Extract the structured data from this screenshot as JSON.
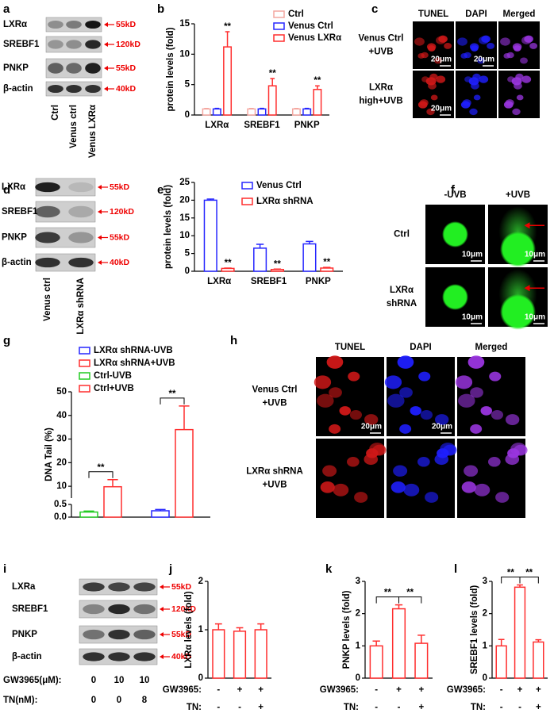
{
  "panel_labels": [
    "a",
    "b",
    "c",
    "d",
    "e",
    "f",
    "g",
    "h",
    "i",
    "j",
    "k",
    "l"
  ],
  "blots": [
    {
      "rows": [
        "LXRα",
        "SREBF1",
        "PNKP",
        "β-actin"
      ],
      "sizes": [
        "55kD",
        "120kD",
        "55kD",
        "40kD"
      ],
      "lanes": [
        "Ctrl",
        "Venus ctrl",
        "Venus LXRα"
      ]
    },
    {
      "rows": [
        "LXRα",
        "SREBF1",
        "PNKP",
        "β-actin"
      ],
      "sizes": [
        "55kD",
        "120kD",
        "55kD",
        "40kD"
      ],
      "lanes": [
        "Venus ctrl",
        "LXRα shRNA"
      ]
    },
    {
      "rows": [
        "LXRa",
        "SREBF1",
        "PNKP",
        "β-actin"
      ],
      "sizes": [
        "55kD",
        "120kD",
        "55kD",
        "40kD"
      ],
      "treatments": [
        {
          "label": "GW3965(μM):",
          "values": [
            0,
            10,
            10
          ]
        },
        {
          "label": "TN(nM):",
          "values": [
            0,
            0,
            8
          ]
        }
      ]
    }
  ],
  "micrographs": [
    {
      "columns": [
        "TUNEL",
        "DAPI",
        "Merged"
      ],
      "rows": [
        [
          "Venus Ctrl",
          "+UVB"
        ],
        [
          "LXRα",
          "high+UVB"
        ]
      ],
      "scale": "20μm"
    },
    {
      "columns": [
        "-UVB",
        "+UVB"
      ],
      "rows": [
        [
          "Ctrl"
        ],
        [
          "LXRα",
          "shRNA"
        ]
      ],
      "scale": "10μm"
    },
    {
      "columns": [
        "TUNEL",
        "DAPI",
        "Merged"
      ],
      "rows": [
        [
          "Venus Ctrl",
          "+UVB"
        ],
        [
          "LXRα shRNA",
          "+UVB"
        ]
      ],
      "scale": "20μm"
    }
  ],
  "chart_data": [
    {
      "type": "bar",
      "ylabel": "protein levels (fold)",
      "categories": [
        "LXRα",
        "SREBF1",
        "PNKP"
      ],
      "series": [
        {
          "name": "Ctrl",
          "color": "#f4a7a0",
          "values": [
            1,
            1,
            1
          ],
          "errors": [
            0.08,
            0.08,
            0.08
          ]
        },
        {
          "name": "Venus Ctrl",
          "color": "#2626ff",
          "values": [
            1,
            1,
            1
          ],
          "errors": [
            0.1,
            0.1,
            0.1
          ]
        },
        {
          "name": "Venus LXRα",
          "color": "#ff2e2e",
          "values": [
            11.2,
            4.8,
            4.2
          ],
          "errors": [
            2.5,
            1.2,
            0.6
          ],
          "significance": [
            "**",
            "**",
            "**"
          ]
        }
      ],
      "ylim": [
        0,
        15
      ],
      "yticks": [
        0,
        5,
        10,
        15
      ],
      "legend": "upper right"
    },
    {
      "type": "bar",
      "ylabel": "protein levels (fold)",
      "categories": [
        "LXRα",
        "SREBF1",
        "PNKP"
      ],
      "series": [
        {
          "name": "Venus Ctrl",
          "color": "#2626ff",
          "values": [
            20,
            6.5,
            7.7
          ],
          "errors": [
            0.3,
            1.1,
            0.7
          ]
        },
        {
          "name": "LXRα shRNA",
          "color": "#ff2e2e",
          "values": [
            0.8,
            0.5,
            0.9
          ],
          "errors": [
            0.1,
            0.1,
            0.2
          ],
          "significance": [
            "**",
            "**",
            "**"
          ]
        }
      ],
      "ylim": [
        0,
        25
      ],
      "yticks": [
        0,
        5,
        10,
        15,
        20,
        25
      ],
      "legend": "upper right"
    },
    {
      "type": "bar",
      "ylabel": "DNA Tail (%)",
      "series": [
        {
          "name": "LXRα shRNA-UVB",
          "color": "#2626ff",
          "values": [
            0.25
          ],
          "errors": [
            0.05
          ]
        },
        {
          "name": "LXRα shRNA+UVB",
          "color": "#ff2e2e",
          "values": [
            34
          ],
          "errors": [
            10
          ]
        },
        {
          "name": "Ctrl-UVB",
          "color": "#22cc22",
          "values": [
            0.2
          ],
          "errors": [
            0.04
          ]
        },
        {
          "name": "Ctrl+UVB",
          "color": "#ff2e2e",
          "values": [
            9.8
          ],
          "errors": [
            3
          ]
        }
      ],
      "ylim": [
        0,
        50
      ],
      "ybreak": [
        0.5,
        5
      ],
      "yticks": [
        {
          "value": 0,
          "label": "0.0"
        },
        {
          "value": 0.5,
          "label": "0.5"
        },
        10,
        20,
        30,
        40,
        50
      ],
      "legend": "upper left",
      "brackets": [
        {
          "between": [
            2,
            3
          ],
          "text": "**"
        },
        {
          "between": [
            0,
            1
          ],
          "text": "**"
        }
      ]
    },
    {
      "type": "bar",
      "ylabel": "LXRα levels (fold)",
      "values": [
        1,
        0.97,
        1
      ],
      "errors": [
        0.12,
        0.07,
        0.12
      ],
      "color": "#ff2e2e",
      "ylim": [
        0,
        2
      ],
      "yticks": [
        0,
        1,
        2
      ],
      "conditions": [
        {
          "label": "GW3965:",
          "values": [
            "-",
            "+",
            "+"
          ]
        },
        {
          "label": "TN:",
          "values": [
            "-",
            "-",
            "+"
          ]
        }
      ]
    },
    {
      "type": "bar",
      "ylabel": "PNKP levels (fold)",
      "values": [
        1,
        2.15,
        1.08
      ],
      "errors": [
        0.15,
        0.12,
        0.25
      ],
      "color": "#ff2e2e",
      "ylim": [
        0,
        3
      ],
      "yticks": [
        0,
        1,
        2,
        3
      ],
      "brackets": [
        {
          "between": [
            0,
            1
          ],
          "text": "**"
        },
        {
          "between": [
            1,
            2
          ],
          "text": "**"
        }
      ],
      "conditions": [
        {
          "label": "GW3965:",
          "values": [
            "-",
            "+",
            "+"
          ]
        },
        {
          "label": "TN:",
          "values": [
            "-",
            "-",
            "+"
          ]
        }
      ]
    },
    {
      "type": "bar",
      "ylabel": "SREBF1 levels (fold)",
      "values": [
        1,
        2.82,
        1.12
      ],
      "errors": [
        0.2,
        0.07,
        0.07
      ],
      "color": "#ff2e2e",
      "ylim": [
        0,
        3
      ],
      "yticks": [
        0,
        1,
        2,
        3
      ],
      "brackets": [
        {
          "between": [
            0,
            1
          ],
          "text": "**"
        },
        {
          "between": [
            1,
            2
          ],
          "text": "**"
        }
      ],
      "conditions": [
        {
          "label": "GW3965:",
          "values": [
            "-",
            "+",
            "+"
          ]
        },
        {
          "label": "TN:",
          "values": [
            "-",
            "-",
            "+"
          ]
        }
      ]
    }
  ]
}
